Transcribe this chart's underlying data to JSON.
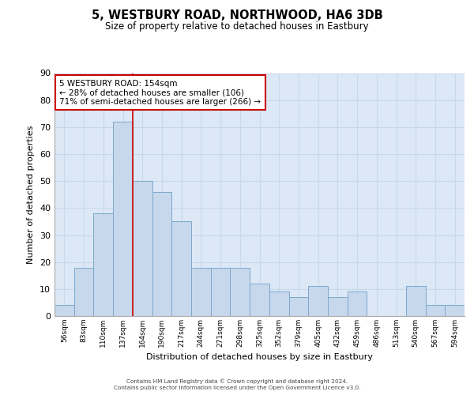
{
  "title": "5, WESTBURY ROAD, NORTHWOOD, HA6 3DB",
  "subtitle": "Size of property relative to detached houses in Eastbury",
  "xlabel": "Distribution of detached houses by size in Eastbury",
  "ylabel": "Number of detached properties",
  "bar_labels": [
    "56sqm",
    "83sqm",
    "110sqm",
    "137sqm",
    "164sqm",
    "190sqm",
    "217sqm",
    "244sqm",
    "271sqm",
    "298sqm",
    "325sqm",
    "352sqm",
    "379sqm",
    "405sqm",
    "432sqm",
    "459sqm",
    "486sqm",
    "513sqm",
    "540sqm",
    "567sqm",
    "594sqm"
  ],
  "bar_values": [
    4,
    18,
    38,
    72,
    50,
    46,
    35,
    18,
    18,
    18,
    12,
    9,
    7,
    11,
    7,
    9,
    0,
    0,
    11,
    4,
    4
  ],
  "bar_color": "#c8d8ec",
  "bar_edge_color": "#7aa8cc",
  "vline_color": "#cc0000",
  "vline_index": 3.5,
  "annotation_box_text_line1": "5 WESTBURY ROAD: 154sqm",
  "annotation_box_text_line2": "← 28% of detached houses are smaller (106)",
  "annotation_box_text_line3": "71% of semi-detached houses are larger (266) →",
  "annotation_box_facecolor": "#ffffff",
  "annotation_box_edgecolor": "#cc0000",
  "ylim": [
    0,
    90
  ],
  "yticks": [
    0,
    10,
    20,
    30,
    40,
    50,
    60,
    70,
    80,
    90
  ],
  "grid_color": "#c8d8ec",
  "background_color": "#dce8f5",
  "footer_line1": "Contains HM Land Registry data © Crown copyright and database right 2024.",
  "footer_line2": "Contains public sector information licensed under the Open Government Licence v3.0."
}
